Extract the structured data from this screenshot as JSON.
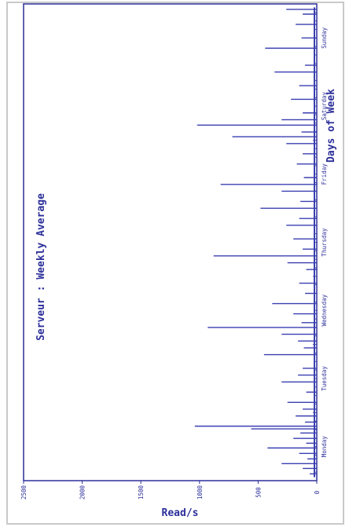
{
  "chart_data": {
    "type": "line",
    "orientation": "rotated-90-ccw",
    "title": "Serveur : Weekly Average",
    "xlabel": "Days of Week",
    "ylabel": "Read/s",
    "ylim": [
      0,
      2500
    ],
    "y_ticks": [
      "0",
      "500",
      "1000",
      "1500",
      "2000",
      "2500"
    ],
    "categories": [
      "Monday",
      "Tuesday",
      "Wednesday",
      "Thursday",
      "Friday",
      "Saturday",
      "Sunday"
    ],
    "xlim": [
      0,
      7
    ],
    "grid": false,
    "colors": {
      "line": "#3a3fb0",
      "frame": "#2c2f9a",
      "text": "#2c2f9a"
    },
    "series": [
      {
        "values": [
          [
            0.1,
            60
          ],
          [
            0.18,
            120
          ],
          [
            0.25,
            300
          ],
          [
            0.32,
            80
          ],
          [
            0.4,
            150
          ],
          [
            0.48,
            420
          ],
          [
            0.55,
            90
          ],
          [
            0.62,
            200
          ],
          [
            0.7,
            140
          ],
          [
            0.76,
            560
          ],
          [
            0.8,
            1040
          ],
          [
            0.86,
            100
          ],
          [
            0.95,
            180
          ],
          [
            1.05,
            120
          ],
          [
            1.15,
            250
          ],
          [
            1.3,
            90
          ],
          [
            1.45,
            300
          ],
          [
            1.55,
            160
          ],
          [
            1.65,
            120
          ],
          [
            1.85,
            450
          ],
          [
            1.95,
            110
          ],
          [
            2.05,
            160
          ],
          [
            2.15,
            300
          ],
          [
            2.25,
            930
          ],
          [
            2.32,
            130
          ],
          [
            2.45,
            200
          ],
          [
            2.6,
            380
          ],
          [
            2.75,
            100
          ],
          [
            2.9,
            150
          ],
          [
            3.1,
            90
          ],
          [
            3.2,
            250
          ],
          [
            3.3,
            880
          ],
          [
            3.4,
            120
          ],
          [
            3.55,
            200
          ],
          [
            3.75,
            260
          ],
          [
            3.85,
            150
          ],
          [
            4.0,
            480
          ],
          [
            4.1,
            140
          ],
          [
            4.25,
            300
          ],
          [
            4.35,
            820
          ],
          [
            4.45,
            110
          ],
          [
            4.65,
            170
          ],
          [
            4.8,
            120
          ],
          [
            4.95,
            260
          ],
          [
            5.05,
            720
          ],
          [
            5.12,
            130
          ],
          [
            5.22,
            1020
          ],
          [
            5.3,
            300
          ],
          [
            5.4,
            120
          ],
          [
            5.6,
            220
          ],
          [
            5.8,
            150
          ],
          [
            6.0,
            360
          ],
          [
            6.1,
            100
          ],
          [
            6.35,
            440
          ],
          [
            6.5,
            130
          ],
          [
            6.7,
            180
          ],
          [
            6.85,
            120
          ],
          [
            6.92,
            260
          ]
        ]
      }
    ]
  }
}
